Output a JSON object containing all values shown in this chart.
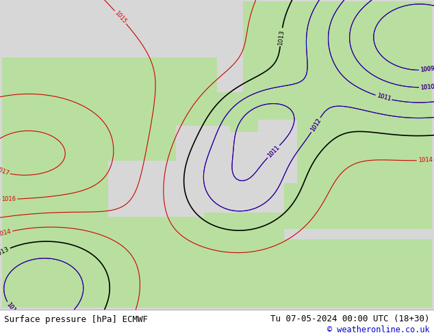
{
  "title_left": "Surface pressure [hPa] ECMWF",
  "title_right": "Tu 07-05-2024 00:00 UTC (18+30)",
  "copyright": "© weatheronline.co.uk",
  "background_color": "#ffffff",
  "map_bg_sea": "#d8d8d8",
  "map_bg_land": "#b8e0a0",
  "footer_bg": "#ffffff",
  "footer_text_color": "#000000",
  "copyright_color": "#0000cc",
  "contour_red_color": "#cc0000",
  "contour_black_color": "#000000",
  "contour_blue_color": "#0000cc",
  "font_family": "monospace",
  "footer_fontsize": 9,
  "contour_fontsize": 7,
  "fig_width": 6.34,
  "fig_height": 4.9
}
